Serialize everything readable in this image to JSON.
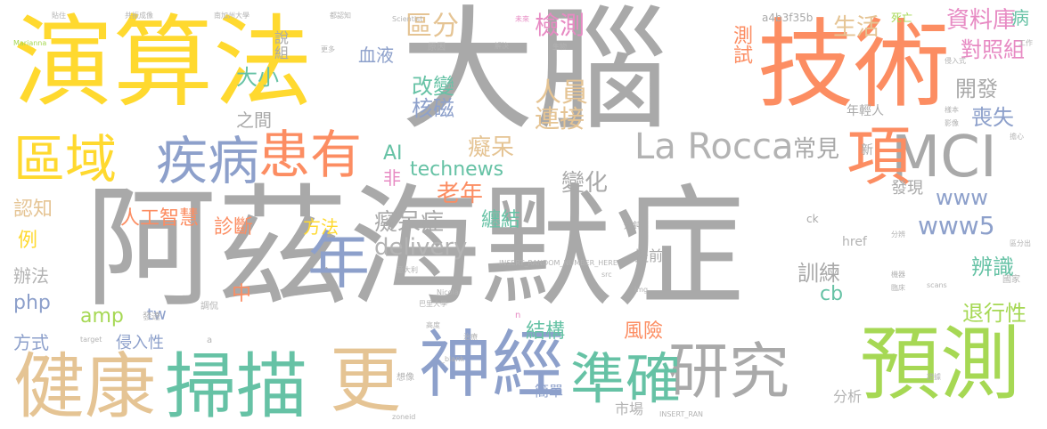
{
  "palette": [
    "#a9a9a9",
    "#fc8d62",
    "#ffd92f",
    "#8da0cb",
    "#66c2a5",
    "#e5c494",
    "#a6d854",
    "#e78ac3",
    "#b3b3b3"
  ],
  "words": {
    "w01": "阿茲海默症",
    "w02": "大腦",
    "w03": "演算法",
    "w04": "技術",
    "w05": "MCI",
    "w06": "預測",
    "w07": "神經",
    "w08": "研究",
    "w09": "準確",
    "w10": "健康",
    "w11": "掃描",
    "w12": "更",
    "w13": "疾病",
    "w14": "區域",
    "w15": "患有",
    "w16": "年",
    "w17": "項",
    "w18": "La Rocca",
    "w19": "檢測",
    "w20": "區分",
    "w21": "生活",
    "w22": "資料庫",
    "w23": "測試",
    "w24": "對照組",
    "w25": "開發",
    "w26": "喪失",
    "w27": "常見",
    "w28": "人員",
    "w29": "連接",
    "w30": "核磁",
    "w31": "改變",
    "w32": "大小",
    "w33": "血液",
    "w34": "癡呆",
    "w35": "technews",
    "w36": "老年",
    "w37": "變化",
    "w38": "delivery",
    "w39": "癡呆症",
    "w40": "人工智慧",
    "w41": "診斷",
    "w42": "方法",
    "w43": "纏結",
    "w44": "www5",
    "w45": "www",
    "w46": "訓練",
    "w47": "辨識",
    "w48": "退行性",
    "w49": "cb",
    "w50": "認知",
    "w51": "辦法",
    "w52": "php",
    "w53": "amp",
    "w54": "tw",
    "w55": "中",
    "w56": "結構",
    "w57": "風險",
    "w58": "方式",
    "w59": "侵入性",
    "w60": "簡單",
    "w61": "市場",
    "w62": "分析",
    "w63": "例",
    "w64": "AI",
    "w65": "非",
    "w66": "發現",
    "w67": "提前",
    "w68": "新",
    "w69": "年輕人",
    "w70": "之間",
    "w71": "組",
    "w72": "說",
    "w73": "a4b3f35b",
    "w74": "死亡",
    "w75": "病",
    "w76": "href",
    "w77": "ck",
    "w78": "INSERT_RANDOM_NUMBER_HERE",
    "w79": "遲鈍",
    "w80": "國家",
    "w81": "調侃",
    "w82": "發達",
    "w83": "_blank",
    "w84": "原因",
    "w85": "更多",
    "w86": "Scientist",
    "w87": "Marianna",
    "w88": "target",
    "w89": "src",
    "w90": "img",
    "w91": "scans",
    "w92": "INSERT_RAN",
    "w93": "Nicola",
    "w94": "n",
    "w95": "a",
    "w96": "工作",
    "w97": "生物",
    "w98": "想像",
    "w99": "高度",
    "w100": "巴里大學",
    "w101": "意大利",
    "w102": "分辨",
    "w103": "侵入式",
    "w104": "zoneid",
    "w105": "解決",
    "w106": "未來",
    "w107": "貼住",
    "w108": "共振成像",
    "w109": "南加州大學",
    "w110": "都認知",
    "w111": "機器",
    "w112": "臨床",
    "w113": "治療",
    "w114": "區分出",
    "w115": "樣本",
    "w116": "影像",
    "w117": "證據",
    "w118": "擔心"
  }
}
